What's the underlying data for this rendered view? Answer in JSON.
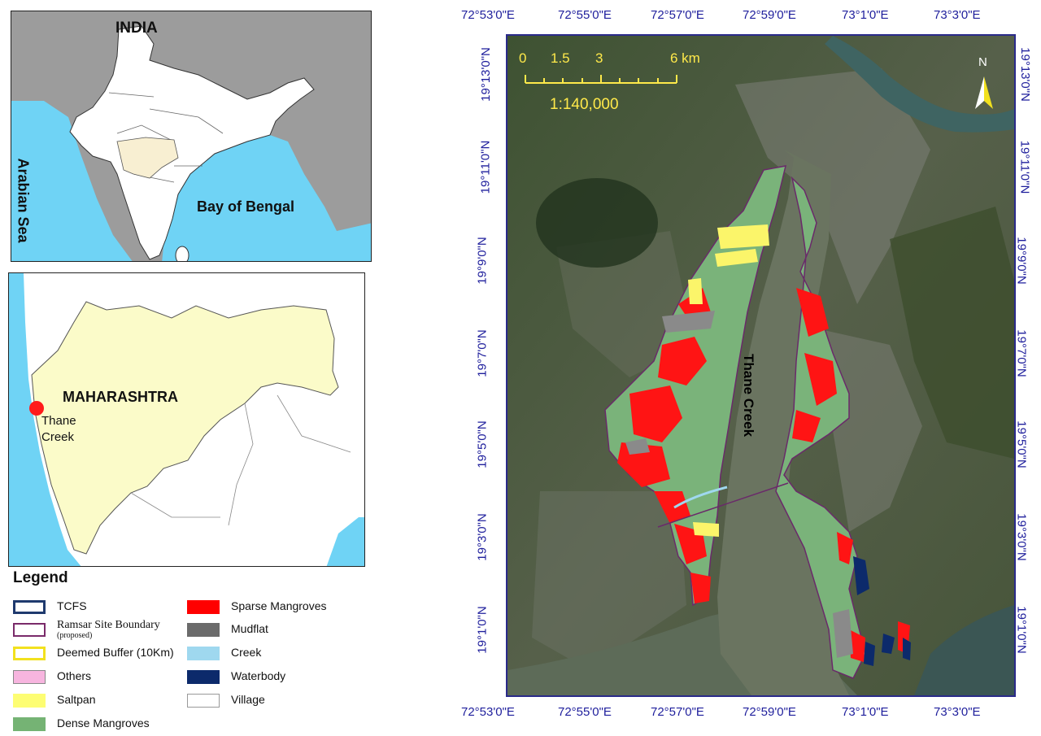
{
  "inset_india": {
    "country_label": "INDIA",
    "west_sea_label": "Arabian Sea",
    "east_sea_label": "Bay of Bengal"
  },
  "inset_state": {
    "state_label": "MAHARASHTRA",
    "site_label_line1": "Thane",
    "site_label_line2": "Creek"
  },
  "legend": {
    "title": "Legend",
    "items": [
      {
        "label": "TCFS",
        "fill": "#ffffff",
        "border": "#1f3a6e"
      },
      {
        "label": "Ramsar Site Boundary",
        "sublabel": "(proposed)",
        "fill": "#ffffff",
        "border": "#7a2b6a"
      },
      {
        "label": "Deemed Buffer (10Km)",
        "fill": "#ffffff",
        "border": "#f2e11e"
      },
      {
        "label": "Others",
        "fill": "#f7b5df",
        "border": "#888888"
      },
      {
        "label": "Saltpan",
        "fill": "#fdfd73",
        "border": "#fdfd73"
      },
      {
        "label": "Dense Mangroves",
        "fill": "#75b374",
        "border": "#75b374"
      },
      {
        "label": "Sparse Mangroves",
        "fill": "#ff0000",
        "border": "#ff0000"
      },
      {
        "label": "Mudflat",
        "fill": "#6b6b6b",
        "border": "#6b6b6b"
      },
      {
        "label": "Creek",
        "fill": "#9fd8ef",
        "border": "#9fd8ef"
      },
      {
        "label": "Waterbody",
        "fill": "#0c2a6b",
        "border": "#0c2a6b"
      },
      {
        "label": "Village",
        "fill": "#ffffff",
        "border": "#999999"
      }
    ]
  },
  "main_map": {
    "creek_label": "Thane Creek",
    "north_label": "N",
    "scale_ticks": [
      "0",
      "1.5",
      "3",
      "6 km"
    ],
    "scale_ratio": "1:140,000",
    "longitudes": [
      "72°53'0\"E",
      "72°55'0\"E",
      "72°57'0\"E",
      "72°59'0\"E",
      "73°1'0\"E",
      "73°3'0\"E"
    ],
    "latitudes": [
      "19°13'0\"N",
      "19°11'0\"N",
      "19°9'0\"N",
      "19°7'0\"N",
      "19°5'0\"N",
      "19°3'0\"N",
      "19°1'0\"N"
    ]
  }
}
